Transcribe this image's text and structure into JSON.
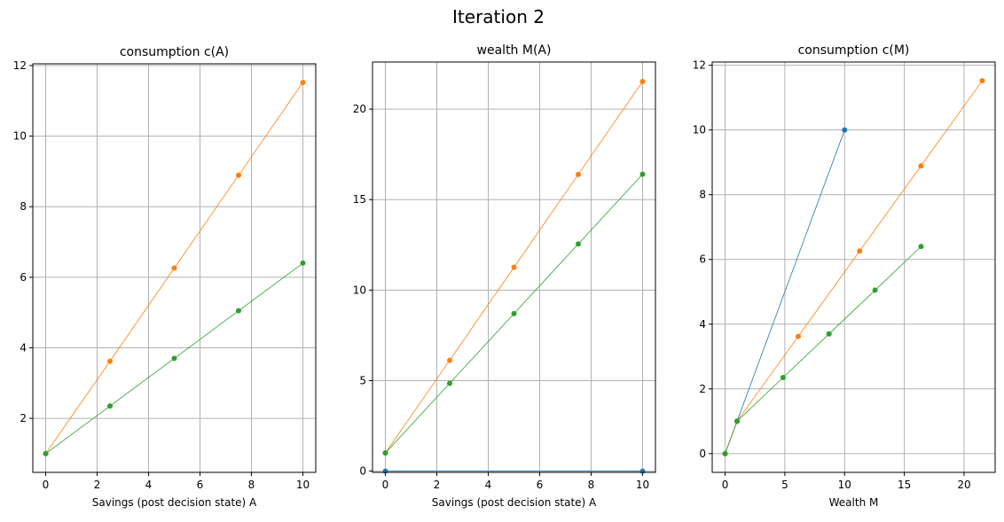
{
  "suptitle": "Iteration 2",
  "colors": {
    "blue": "#1f77b4",
    "orange": "#ff7f0e",
    "green": "#2ca02c",
    "grid": "#b0b0b0"
  },
  "chart_data": [
    {
      "type": "line",
      "title": "consumption c(A)",
      "xlabel": "Savings (post decision state) A",
      "ylabel": "",
      "xlim": [
        -0.5,
        10.5
      ],
      "ylim": [
        0.47,
        12.05
      ],
      "xticks": [
        0,
        2,
        4,
        6,
        8,
        10
      ],
      "yticks": [
        2,
        4,
        6,
        8,
        10,
        12
      ],
      "grid": true,
      "series": [
        {
          "name": "orange",
          "color": "#ff7f0e",
          "x": [
            0,
            2.5,
            5,
            7.5,
            10
          ],
          "y": [
            1,
            3.62,
            6.26,
            8.89,
            11.52
          ]
        },
        {
          "name": "green",
          "color": "#2ca02c",
          "x": [
            0,
            2.5,
            5,
            7.5,
            10
          ],
          "y": [
            1,
            2.35,
            3.7,
            5.05,
            6.4
          ]
        }
      ]
    },
    {
      "type": "line",
      "title": "wealth M(A)",
      "xlabel": "Savings (post decision state) A",
      "ylabel": "",
      "xlim": [
        -0.5,
        10.5
      ],
      "ylim": [
        -0.07,
        22.6
      ],
      "xticks": [
        0,
        2,
        4,
        6,
        8,
        10
      ],
      "yticks": [
        0,
        5,
        10,
        15,
        20
      ],
      "grid": true,
      "series": [
        {
          "name": "blue",
          "color": "#1f77b4",
          "x": [
            0,
            10
          ],
          "y": [
            0,
            0
          ]
        },
        {
          "name": "orange",
          "color": "#ff7f0e",
          "x": [
            0,
            2.5,
            5,
            7.5,
            10
          ],
          "y": [
            1,
            6.12,
            11.26,
            16.39,
            21.52
          ]
        },
        {
          "name": "green",
          "color": "#2ca02c",
          "x": [
            0,
            2.5,
            5,
            7.5,
            10
          ],
          "y": [
            1,
            4.85,
            8.7,
            12.55,
            16.4
          ]
        }
      ]
    },
    {
      "type": "line",
      "title": "consumption c(M)",
      "xlabel": "Wealth M",
      "ylabel": "",
      "xlim": [
        -1.08,
        22.6
      ],
      "ylim": [
        -0.58,
        12.1
      ],
      "xticks": [
        0,
        5,
        10,
        15,
        20
      ],
      "yticks": [
        0,
        2,
        4,
        6,
        8,
        10,
        12
      ],
      "grid": true,
      "series": [
        {
          "name": "blue",
          "color": "#1f77b4",
          "x": [
            0,
            1,
            10
          ],
          "y": [
            0,
            1,
            10
          ]
        },
        {
          "name": "orange",
          "color": "#ff7f0e",
          "x": [
            0,
            1,
            6.12,
            11.26,
            16.39,
            21.52
          ],
          "y": [
            0,
            1,
            3.62,
            6.26,
            8.89,
            11.52
          ]
        },
        {
          "name": "green",
          "color": "#2ca02c",
          "x": [
            0,
            1,
            4.85,
            8.7,
            12.55,
            16.4
          ],
          "y": [
            0,
            1,
            2.35,
            3.7,
            5.05,
            6.4
          ]
        }
      ]
    }
  ]
}
